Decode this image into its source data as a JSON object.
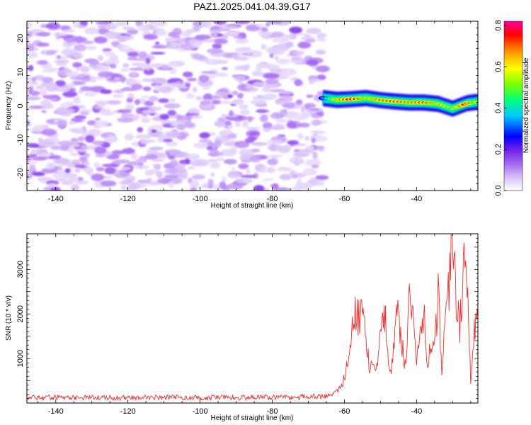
{
  "chart_data": [
    {
      "type": "heatmap",
      "title": "PAZ1.2025.041.04.39.G17",
      "xlabel": "Height of straight line (km)",
      "ylabel": "Frequency (Hz)",
      "xlim": [
        -148,
        -23
      ],
      "ylim": [
        -25,
        25
      ],
      "x_ticks": [
        "-140",
        "-120",
        "-100",
        "-80",
        "-60",
        "-40"
      ],
      "y_ticks": [
        "-20",
        "-10",
        "0",
        "10",
        "20"
      ],
      "colorbar": {
        "label": "Normalized spectral amplitude",
        "range": [
          0.0,
          0.82
        ],
        "ticks": [
          "0.0",
          "0.2",
          "0.4",
          "0.6",
          "0.8"
        ]
      },
      "noise_region": {
        "x_range": [
          -148,
          -66
        ],
        "y_range": [
          -25,
          25
        ],
        "amplitude_range": [
          0.05,
          0.2
        ]
      },
      "signal_ridge": {
        "points": [
          {
            "x": -66,
            "y": 2.3,
            "a": 0.35
          },
          {
            "x": -62,
            "y": 1.8,
            "a": 0.65
          },
          {
            "x": -58,
            "y": 2.0,
            "a": 0.78
          },
          {
            "x": -54,
            "y": 2.3,
            "a": 0.6
          },
          {
            "x": -50,
            "y": 1.7,
            "a": 0.7
          },
          {
            "x": -46,
            "y": 1.3,
            "a": 0.72
          },
          {
            "x": -42,
            "y": 1.0,
            "a": 0.68
          },
          {
            "x": -38,
            "y": 1.0,
            "a": 0.72
          },
          {
            "x": -34,
            "y": 0.6,
            "a": 0.62
          },
          {
            "x": -30,
            "y": -0.8,
            "a": 0.55
          },
          {
            "x": -26,
            "y": 0.8,
            "a": 0.78
          },
          {
            "x": -23,
            "y": 1.2,
            "a": 0.5
          }
        ]
      }
    },
    {
      "type": "line",
      "xlabel": "Height of straight line (km)",
      "ylabel": "SNR (10 * v/v)",
      "xlim": [
        -148,
        -23
      ],
      "ylim": [
        0,
        3800
      ],
      "x_ticks": [
        "-140",
        "-120",
        "-100",
        "-80",
        "-60",
        "-40"
      ],
      "y_ticks": [
        "1000",
        "2000",
        "3000"
      ],
      "series": [
        {
          "color": "#e83232",
          "x": [
            -148,
            -140,
            -130,
            -120,
            -110,
            -100,
            -90,
            -80,
            -70,
            -65,
            -62,
            -60,
            -59,
            -58,
            -57,
            -56,
            -55,
            -54,
            -53,
            -52,
            -51,
            -50,
            -49,
            -48,
            -47,
            -46,
            -45,
            -44,
            -43,
            -42,
            -41,
            -40,
            -39,
            -38,
            -37,
            -36,
            -35,
            -34,
            -33,
            -32,
            -31,
            -30,
            -29,
            -28,
            -27,
            -26,
            -25,
            -24,
            -23
          ],
          "values": [
            120,
            130,
            125,
            120,
            130,
            120,
            125,
            130,
            140,
            160,
            250,
            550,
            900,
            1500,
            2100,
            1950,
            2300,
            1300,
            800,
            700,
            950,
            1400,
            2200,
            1200,
            600,
            1600,
            2100,
            1300,
            700,
            2400,
            1900,
            1000,
            1700,
            2000,
            900,
            1500,
            1100,
            2550,
            800,
            1600,
            2600,
            3700,
            2300,
            1700,
            2900,
            3000,
            400,
            1800,
            1900
          ]
        }
      ]
    }
  ],
  "colors": {
    "palette_stops": [
      "#ffffff",
      "#dcc8f8",
      "#a466f2",
      "#7020e8",
      "#0000ff",
      "#00c8ff",
      "#00ff80",
      "#80ff00",
      "#ffff00",
      "#ff9600",
      "#ff0000",
      "#ff00a0"
    ],
    "snr_line": "#e83232"
  }
}
